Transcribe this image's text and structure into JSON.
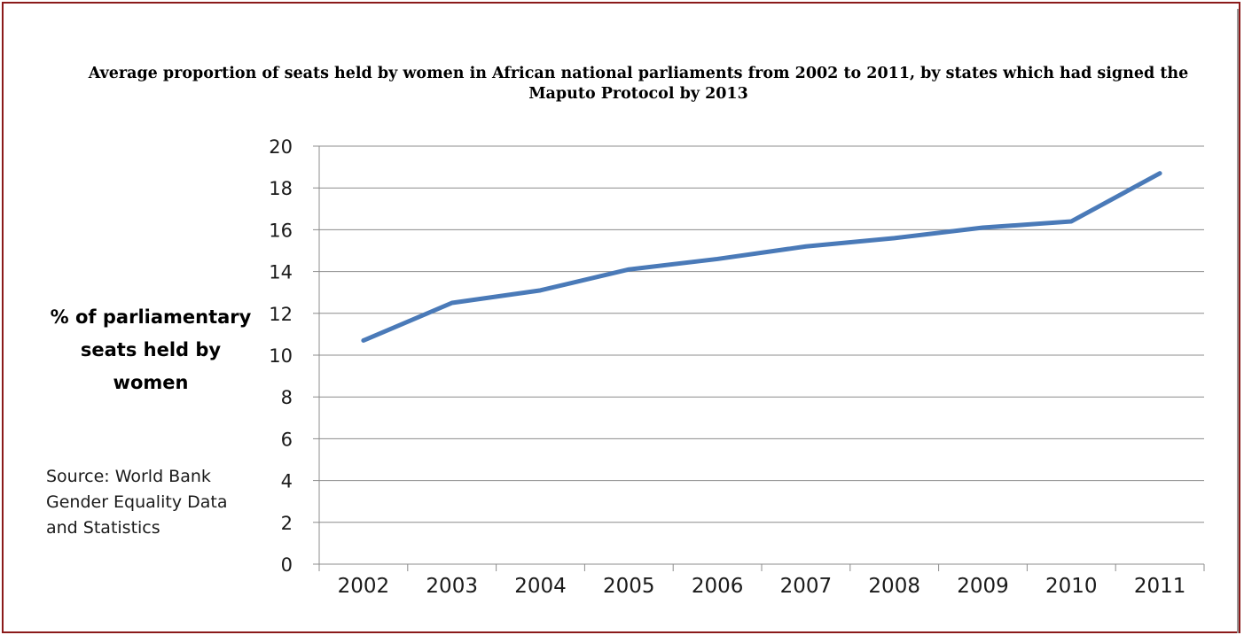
{
  "colors": {
    "frame_outer": "#8b1a1a",
    "frame_inner": "#9a9a9a",
    "series_line": "#4a7ab8",
    "gridline": "#8c8c8c"
  },
  "chart_data": {
    "type": "line",
    "title": "Average proportion of seats held by women in African national parliaments from 2002 to 2011, by states which had signed the Maputo Protocol by 2013",
    "ylabel": "% of parliamentary seats held by women",
    "xlabel": "",
    "categories": [
      "2002",
      "2003",
      "2004",
      "2005",
      "2006",
      "2007",
      "2008",
      "2009",
      "2010",
      "2011"
    ],
    "series": [
      {
        "values": [
          10.7,
          12.5,
          13.1,
          14.1,
          14.6,
          15.2,
          15.6,
          16.1,
          16.4,
          18.7
        ]
      }
    ],
    "ylim": [
      0,
      20
    ],
    "yticks": [
      "0",
      "2",
      "4",
      "6",
      "8",
      "10",
      "12",
      "14",
      "16",
      "18",
      "20"
    ],
    "grid": true,
    "legend": "none",
    "annotations": [
      "Source: World Bank Gender Equality Data and Statistics"
    ]
  }
}
